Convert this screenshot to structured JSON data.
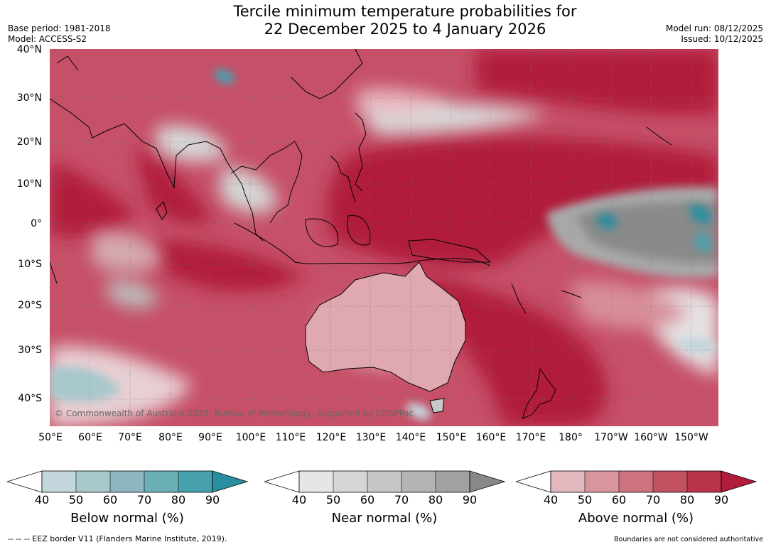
{
  "header": {
    "title_line1": "Tercile minimum temperature probabilities for",
    "title_line2": "22 December 2025 to 4 January 2026",
    "base_period": "Base period: 1981-2018",
    "model": "Model: ACCESS-S2",
    "model_run": "Model run: 08/12/2025",
    "issued": "Issued: 10/12/2025"
  },
  "map": {
    "latitude_labels": [
      "40°N",
      "30°N",
      "20°N",
      "10°N",
      "0°",
      "10°S",
      "20°S",
      "30°S",
      "40°S"
    ],
    "longitude_labels": [
      "50°E",
      "60°E",
      "70°E",
      "80°E",
      "90°E",
      "100°E",
      "110°E",
      "120°E",
      "130°E",
      "140°E",
      "150°E",
      "160°E",
      "170°E",
      "180°",
      "170°W",
      "160°W",
      "150°W"
    ],
    "copyright": "© Commonwealth of Australia 2025, Bureau of Meteorology, supported by COSPPac"
  },
  "colorbars": [
    {
      "label": "Below normal (%)",
      "ticks": [
        "40",
        "50",
        "60",
        "70",
        "80",
        "90"
      ],
      "colors": [
        "#c2d6dc",
        "#a8c8cc",
        "#8db6c0",
        "#6aaeb6",
        "#47a0ae",
        "#2a8ea0"
      ]
    },
    {
      "label": "Near normal (%)",
      "ticks": [
        "40",
        "50",
        "60",
        "70",
        "80",
        "90"
      ],
      "colors": [
        "#e6e6e6",
        "#d6d6d6",
        "#c6c6c6",
        "#b4b4b4",
        "#a2a2a2",
        "#888888"
      ]
    },
    {
      "label": "Above normal (%)",
      "ticks": [
        "40",
        "50",
        "60",
        "70",
        "80",
        "90"
      ],
      "colors": [
        "#e2b8be",
        "#d8959c",
        "#cd747e",
        "#c25262",
        "#b9344a",
        "#b11c3a"
      ]
    }
  ],
  "footer": {
    "eez": "--  --  -- EEZ border V11 (Flanders Marine Institute, 2019).",
    "boundaries": "Boundaries are not considered authoritative"
  }
}
